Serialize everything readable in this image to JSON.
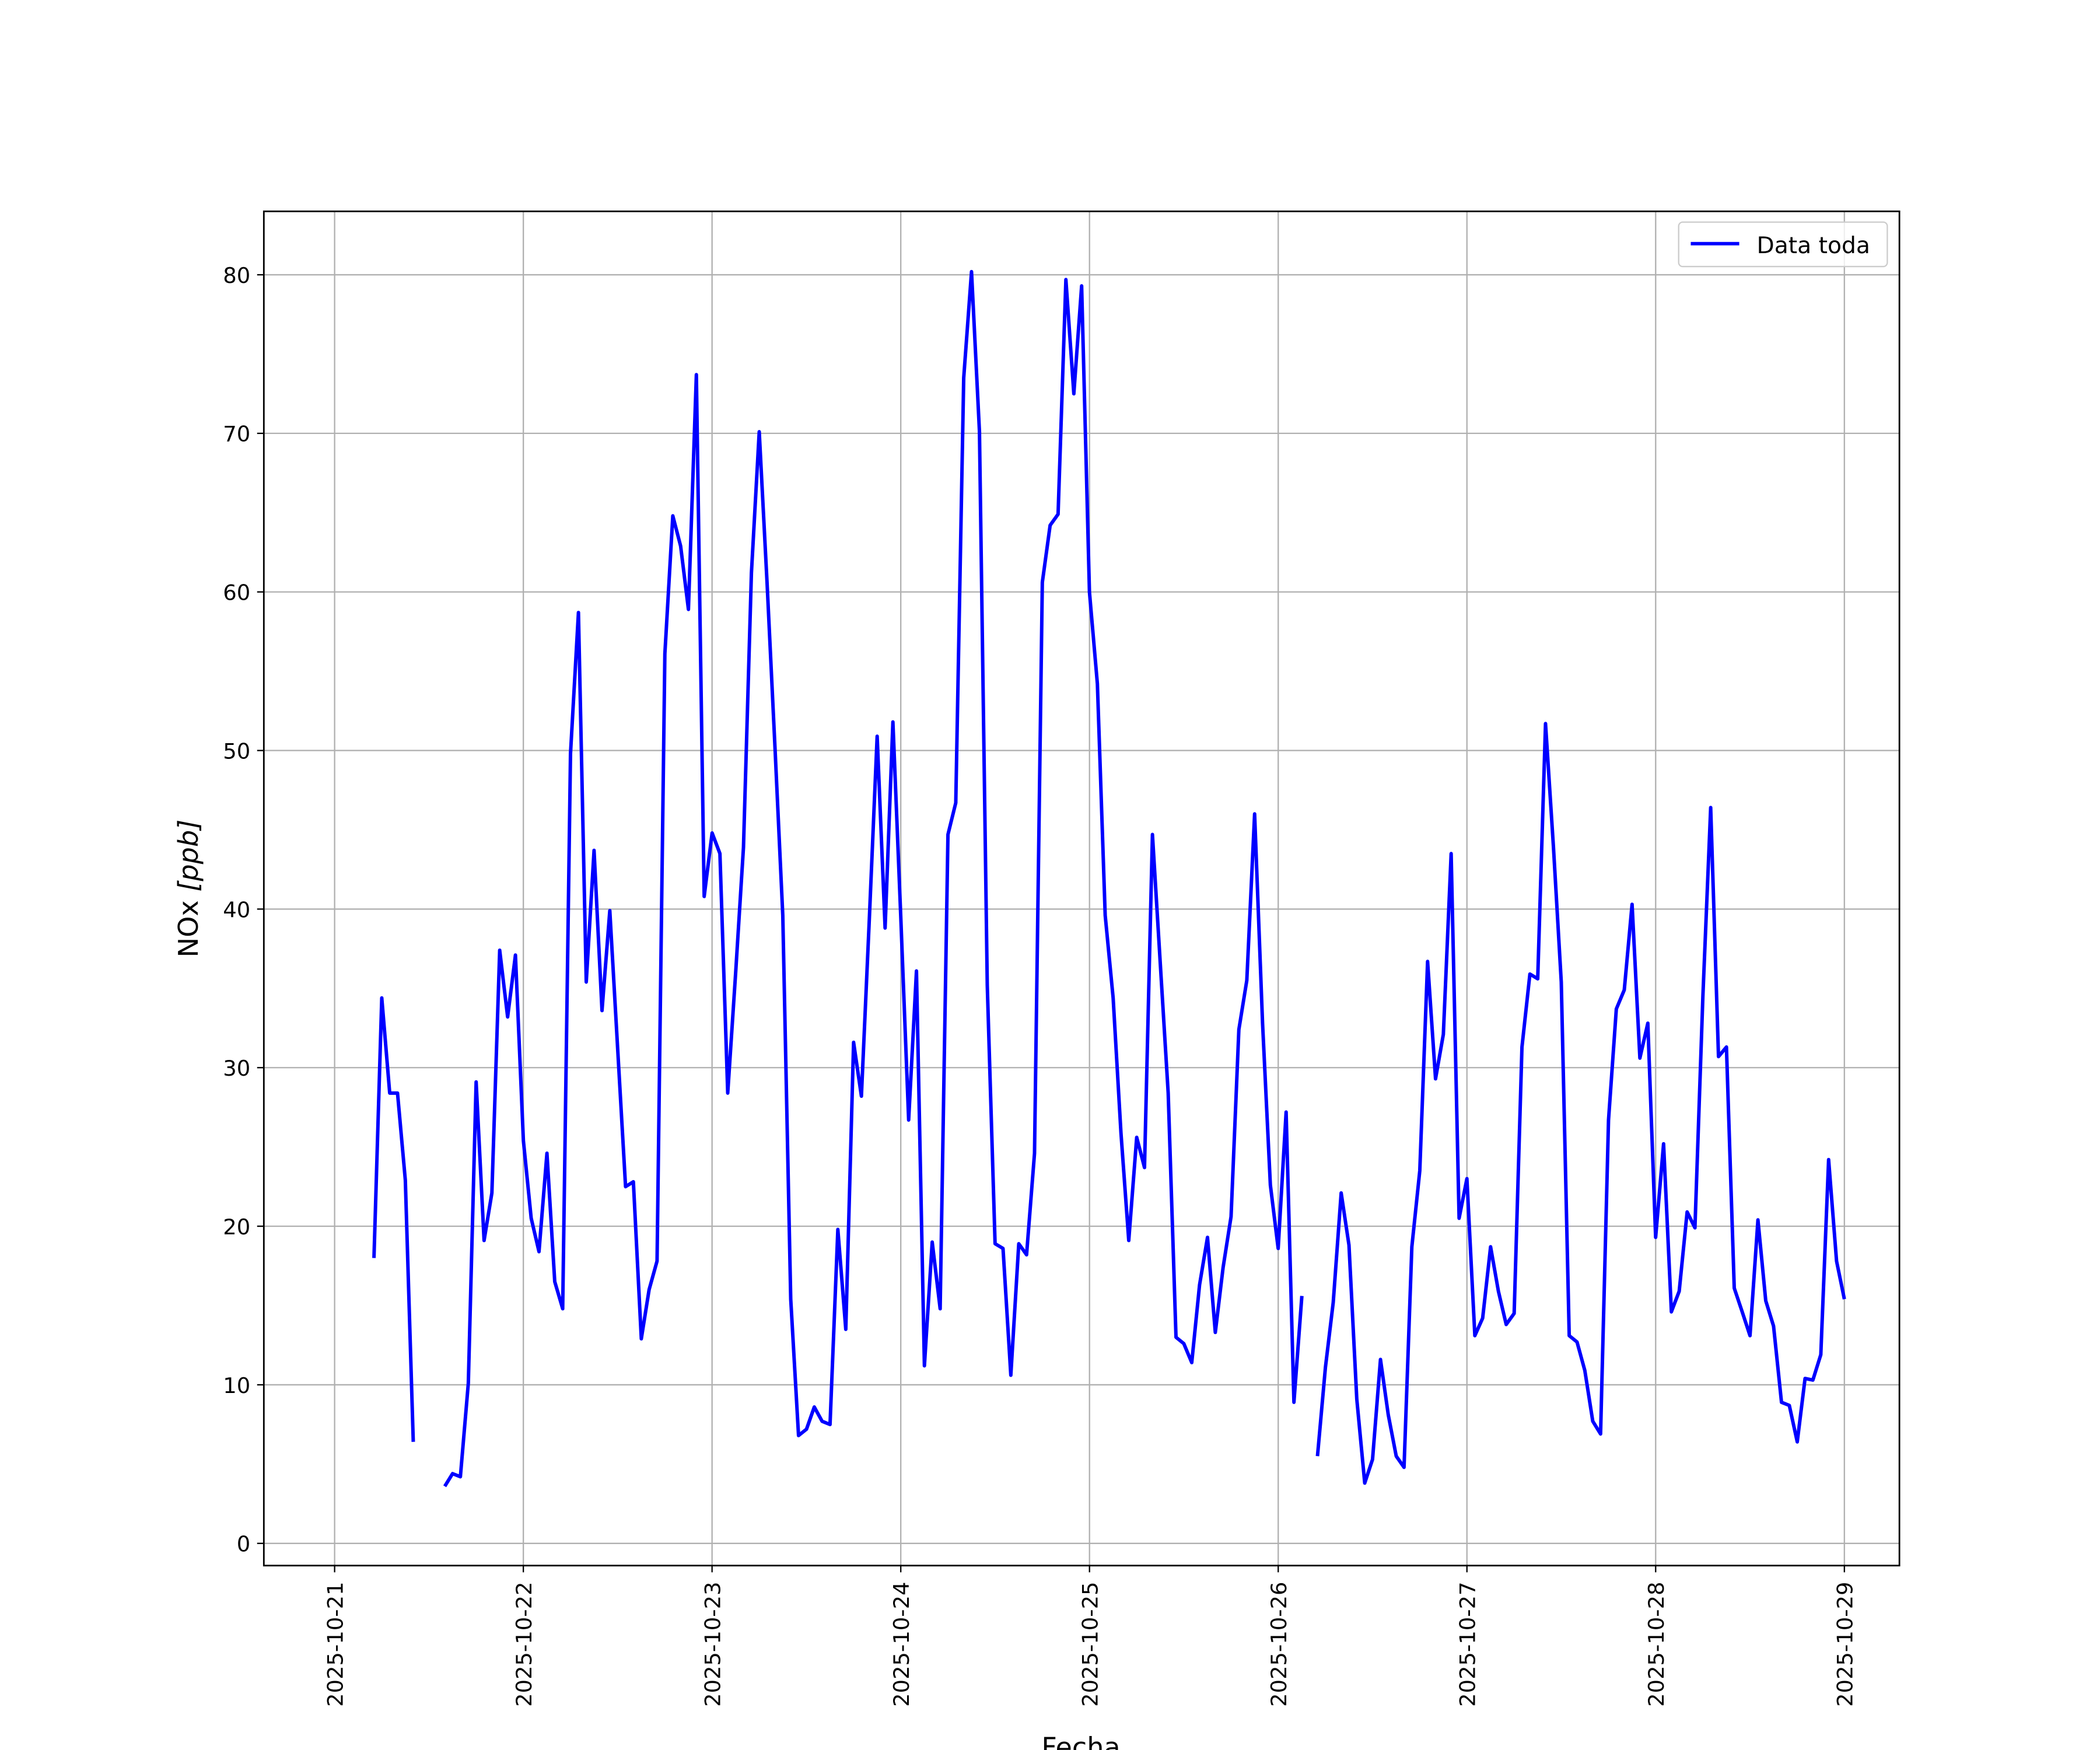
{
  "chart_data": {
    "type": "line",
    "title": "",
    "xlabel": "Fecha",
    "ylabel": "NOx [ppb]",
    "ylabel_main": "NOx ",
    "ylabel_unit": "[ppb]",
    "xlim": [
      "2025-10-20T15:00",
      "2025-10-29T07:00"
    ],
    "ylim": [
      -1.4,
      84
    ],
    "grid": true,
    "legend_position": "top-right",
    "x_ticks": [
      "2025-10-21",
      "2025-10-22",
      "2025-10-23",
      "2025-10-24",
      "2025-10-25",
      "2025-10-26",
      "2025-10-27",
      "2025-10-28",
      "2025-10-29"
    ],
    "y_ticks": [
      0,
      10,
      20,
      30,
      40,
      50,
      60,
      70,
      80
    ],
    "series": [
      {
        "name": "Data toda",
        "color": "#0000ff",
        "x": [
          "2025-10-21T05:00",
          "2025-10-21T06:00",
          "2025-10-21T07:00",
          "2025-10-21T08:00",
          "2025-10-21T09:00",
          "2025-10-21T10:00",
          "2025-10-21T11:00",
          "2025-10-21T14:00",
          "2025-10-21T15:00",
          "2025-10-21T16:00",
          "2025-10-21T17:00",
          "2025-10-21T18:00",
          "2025-10-21T19:00",
          "2025-10-21T20:00",
          "2025-10-21T21:00",
          "2025-10-21T22:00",
          "2025-10-21T23:00",
          "2025-10-22T00:00",
          "2025-10-22T01:00",
          "2025-10-22T02:00",
          "2025-10-22T03:00",
          "2025-10-22T04:00",
          "2025-10-22T05:00",
          "2025-10-22T06:00",
          "2025-10-22T07:00",
          "2025-10-22T08:00",
          "2025-10-22T09:00",
          "2025-10-22T10:00",
          "2025-10-22T11:00",
          "2025-10-22T12:00",
          "2025-10-22T13:00",
          "2025-10-22T14:00",
          "2025-10-22T15:00",
          "2025-10-22T16:00",
          "2025-10-22T17:00",
          "2025-10-22T18:00",
          "2025-10-22T19:00",
          "2025-10-22T20:00",
          "2025-10-22T21:00",
          "2025-10-22T22:00",
          "2025-10-22T23:00",
          "2025-10-23T00:00",
          "2025-10-23T01:00",
          "2025-10-23T02:00",
          "2025-10-23T03:00",
          "2025-10-23T04:00",
          "2025-10-23T05:00",
          "2025-10-23T06:00",
          "2025-10-23T07:00",
          "2025-10-23T08:00",
          "2025-10-23T09:00",
          "2025-10-23T10:00",
          "2025-10-23T11:00",
          "2025-10-23T12:00",
          "2025-10-23T13:00",
          "2025-10-23T14:00",
          "2025-10-23T15:00",
          "2025-10-23T16:00",
          "2025-10-23T17:00",
          "2025-10-23T18:00",
          "2025-10-23T19:00",
          "2025-10-23T20:00",
          "2025-10-23T21:00",
          "2025-10-23T22:00",
          "2025-10-23T23:00",
          "2025-10-24T00:00",
          "2025-10-24T01:00",
          "2025-10-24T02:00",
          "2025-10-24T03:00",
          "2025-10-24T04:00",
          "2025-10-24T05:00",
          "2025-10-24T06:00",
          "2025-10-24T07:00",
          "2025-10-24T08:00",
          "2025-10-24T09:00",
          "2025-10-24T10:00",
          "2025-10-24T11:00",
          "2025-10-24T12:00",
          "2025-10-24T13:00",
          "2025-10-24T14:00",
          "2025-10-24T15:00",
          "2025-10-24T16:00",
          "2025-10-24T17:00",
          "2025-10-24T18:00",
          "2025-10-24T19:00",
          "2025-10-24T20:00",
          "2025-10-24T21:00",
          "2025-10-24T22:00",
          "2025-10-24T23:00",
          "2025-10-25T00:00",
          "2025-10-25T01:00",
          "2025-10-25T02:00",
          "2025-10-25T03:00",
          "2025-10-25T04:00",
          "2025-10-25T05:00",
          "2025-10-25T06:00",
          "2025-10-25T07:00",
          "2025-10-25T08:00",
          "2025-10-25T09:00",
          "2025-10-25T10:00",
          "2025-10-25T11:00",
          "2025-10-25T12:00",
          "2025-10-25T13:00",
          "2025-10-25T14:00",
          "2025-10-25T15:00",
          "2025-10-25T16:00",
          "2025-10-25T17:00",
          "2025-10-25T18:00",
          "2025-10-25T19:00",
          "2025-10-25T20:00",
          "2025-10-25T21:00",
          "2025-10-25T22:00",
          "2025-10-25T23:00",
          "2025-10-26T00:00",
          "2025-10-26T01:00",
          "2025-10-26T02:00",
          "2025-10-26T03:00",
          "2025-10-26T04:00",
          "2025-10-26T05:00",
          "2025-10-26T06:00",
          "2025-10-26T07:00",
          "2025-10-26T08:00",
          "2025-10-26T09:00",
          "2025-10-26T10:00",
          "2025-10-26T11:00",
          "2025-10-26T12:00",
          "2025-10-26T13:00",
          "2025-10-26T14:00",
          "2025-10-26T15:00",
          "2025-10-26T16:00",
          "2025-10-26T17:00",
          "2025-10-26T18:00",
          "2025-10-26T19:00",
          "2025-10-26T20:00",
          "2025-10-26T21:00",
          "2025-10-26T22:00",
          "2025-10-26T23:00",
          "2025-10-27T00:00",
          "2025-10-27T01:00",
          "2025-10-27T02:00",
          "2025-10-27T03:00",
          "2025-10-27T04:00",
          "2025-10-27T05:00",
          "2025-10-27T06:00",
          "2025-10-27T07:00",
          "2025-10-27T08:00",
          "2025-10-27T09:00",
          "2025-10-27T10:00",
          "2025-10-27T11:00",
          "2025-10-27T12:00",
          "2025-10-27T13:00",
          "2025-10-27T14:00",
          "2025-10-27T15:00",
          "2025-10-27T16:00",
          "2025-10-27T17:00",
          "2025-10-27T18:00",
          "2025-10-27T19:00",
          "2025-10-27T20:00",
          "2025-10-27T21:00",
          "2025-10-27T22:00",
          "2025-10-27T23:00",
          "2025-10-28T00:00",
          "2025-10-28T01:00",
          "2025-10-28T02:00",
          "2025-10-28T03:00",
          "2025-10-28T04:00",
          "2025-10-28T05:00",
          "2025-10-28T06:00",
          "2025-10-28T07:00",
          "2025-10-28T08:00",
          "2025-10-28T09:00",
          "2025-10-28T10:00",
          "2025-10-28T11:00",
          "2025-10-28T12:00",
          "2025-10-28T13:00",
          "2025-10-28T14:00",
          "2025-10-28T15:00",
          "2025-10-28T16:00",
          "2025-10-28T17:00",
          "2025-10-28T18:00",
          "2025-10-28T19:00",
          "2025-10-28T20:00",
          "2025-10-28T21:00",
          "2025-10-28T22:00",
          "2025-10-28T23:00",
          "2025-10-29T00:00"
        ],
        "y": [
          18.0,
          34.4,
          28.4,
          28.4,
          22.9,
          6.4,
          null,
          3.6,
          4.4,
          4.2,
          10.1,
          29.1,
          19.1,
          22.1,
          37.4,
          33.2,
          37.1,
          25.4,
          20.5,
          18.4,
          24.6,
          16.5,
          14.8,
          49.8,
          58.7,
          35.4,
          43.7,
          33.6,
          39.9,
          31.1,
          22.5,
          22.8,
          12.9,
          16.0,
          17.8,
          56.1,
          64.8,
          62.9,
          58.9,
          73.7,
          40.8,
          44.8,
          43.5,
          28.4,
          36.0,
          43.9,
          61.2,
          70.1,
          60.6,
          50.2,
          39.6,
          15.4,
          6.8,
          7.2,
          8.6,
          7.7,
          7.5,
          19.8,
          13.5,
          31.6,
          28.2,
          39.4,
          50.9,
          38.8,
          51.8,
          39.6,
          26.7,
          36.1,
          11.2,
          19.0,
          14.8,
          44.7,
          46.7,
          73.5,
          80.2,
          70.1,
          35.2,
          18.9,
          18.6,
          10.6,
          18.9,
          18.2,
          24.6,
          60.6,
          64.2,
          64.9,
          79.7,
          72.5,
          79.3,
          60.0,
          54.2,
          39.6,
          34.4,
          25.9,
          19.1,
          25.6,
          23.7,
          44.7,
          36.6,
          28.4,
          13.0,
          12.6,
          11.4,
          16.3,
          19.3,
          13.3,
          17.4,
          20.6,
          32.4,
          35.5,
          46.0,
          32.8,
          22.6,
          18.6,
          27.2,
          8.9,
          15.6,
          null,
          5.5,
          11.1,
          15.2,
          22.1,
          18.8,
          9.1,
          3.8,
          5.3,
          11.6,
          8.1,
          5.5,
          4.8,
          18.7,
          23.5,
          36.7,
          29.3,
          32.1,
          43.5,
          20.5,
          23.0,
          13.1,
          14.2,
          18.7,
          15.9,
          13.8,
          14.5,
          31.3,
          35.9,
          35.6,
          51.7,
          43.9,
          35.4,
          13.1,
          12.7,
          10.9,
          7.7,
          6.9,
          26.7,
          33.7,
          34.9,
          40.3,
          30.6,
          32.8,
          19.3,
          25.2,
          14.6,
          15.9,
          20.9,
          19.9,
          34.5,
          46.4,
          30.7,
          31.3,
          16.1,
          14.6,
          13.1,
          20.4,
          15.3,
          13.7,
          8.9,
          8.7,
          6.4,
          10.4,
          10.3,
          11.9,
          24.2,
          17.8,
          15.4
        ]
      }
    ]
  }
}
